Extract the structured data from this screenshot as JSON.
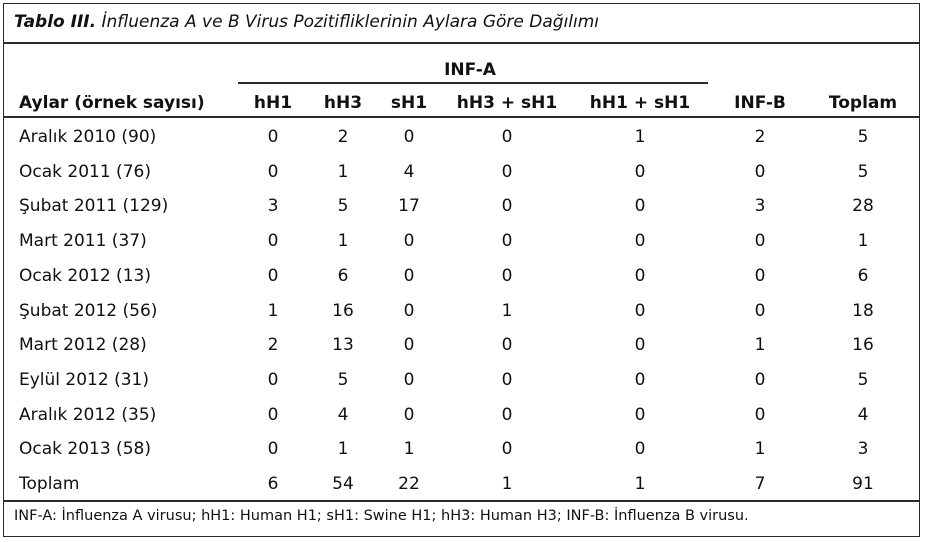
{
  "caption": {
    "lead": "Tablo III.",
    "title": "İnfluenza A ve B Virus Pozitifliklerinin Aylara Göre Dağılımı"
  },
  "table": {
    "group_header": "INF-A",
    "columns": [
      "Aylar (örnek sayısı)",
      "hH1",
      "hH3",
      "sH1",
      "hH3 + sH1",
      "hH1 + sH1",
      "INF-B",
      "Toplam"
    ],
    "rows": [
      [
        "Aralık 2010 (90)",
        "0",
        "2",
        "0",
        "0",
        "1",
        "2",
        "5"
      ],
      [
        "Ocak 2011 (76)",
        "0",
        "1",
        "4",
        "0",
        "0",
        "0",
        "5"
      ],
      [
        "Şubat 2011 (129)",
        "3",
        "5",
        "17",
        "0",
        "0",
        "3",
        "28"
      ],
      [
        "Mart 2011 (37)",
        "0",
        "1",
        "0",
        "0",
        "0",
        "0",
        "1"
      ],
      [
        "Ocak 2012 (13)",
        "0",
        "6",
        "0",
        "0",
        "0",
        "0",
        "6"
      ],
      [
        "Şubat 2012 (56)",
        "1",
        "16",
        "0",
        "1",
        "0",
        "0",
        "18"
      ],
      [
        "Mart 2012 (28)",
        "2",
        "13",
        "0",
        "0",
        "0",
        "1",
        "16"
      ],
      [
        "Eylül 2012 (31)",
        "0",
        "5",
        "0",
        "0",
        "0",
        "0",
        "5"
      ],
      [
        "Aralık 2012 (35)",
        "0",
        "4",
        "0",
        "0",
        "0",
        "0",
        "4"
      ],
      [
        "Ocak 2013 (58)",
        "0",
        "1",
        "1",
        "0",
        "0",
        "1",
        "3"
      ],
      [
        "Toplam",
        "6",
        "54",
        "22",
        "1",
        "1",
        "7",
        "91"
      ]
    ]
  },
  "footnote": "INF-A: İnfluenza A virusu; hH1: Human H1; sH1: Swine H1; hH3: Human H3; INF-B: İnfluenza B virusu."
}
